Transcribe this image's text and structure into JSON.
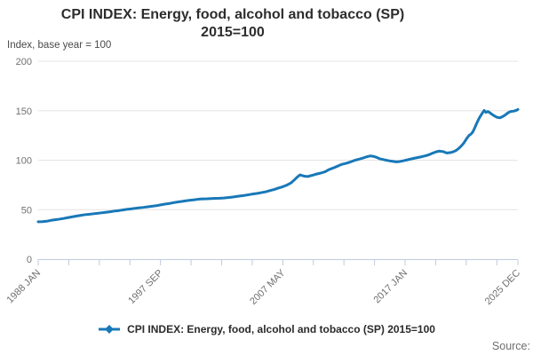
{
  "title": {
    "line1": "CPI INDEX: Energy, food, alcohol and tobacco (SP)",
    "line2": "2015=100"
  },
  "subtitle": "Index, base year = 100",
  "legend": {
    "label": "CPI INDEX: Energy, food, alcohol and tobacco (SP) 2015=100"
  },
  "source_label": "Source:",
  "colors": {
    "line": "#1878b8",
    "grid": "#e4e4e4",
    "axis": "#bfcbdf",
    "tick_text": "#707070",
    "title_text": "#2d2d2d"
  },
  "chart_data": {
    "type": "line",
    "title": "CPI INDEX: Energy, food, alcohol and tobacco (SP) 2015=100",
    "xlabel": "",
    "ylabel": "Index, base year = 100",
    "ylim": [
      0,
      200
    ],
    "y_ticks": [
      0,
      50,
      100,
      150,
      200
    ],
    "grid": true,
    "legend_position": "bottom",
    "x_start_year": 1988.0,
    "x_end_year": 2025.917,
    "total_months": 455,
    "x_ticks": [
      {
        "label": "1988 JAN",
        "m": 0
      },
      {
        "label": "1997 SEP",
        "m": 116
      },
      {
        "label": "2007 MAY",
        "m": 232
      },
      {
        "label": "2017 JAN",
        "m": 348
      },
      {
        "label": "2025 DEC",
        "m": 455
      }
    ],
    "minor_tick_months": [
      0,
      29,
      58,
      87,
      116,
      145,
      174,
      203,
      232,
      261,
      290,
      319,
      348,
      377,
      406,
      435,
      455
    ],
    "series": [
      {
        "name": "CPI INDEX: Energy, food, alcohol and tobacco (SP) 2015=100",
        "points": [
          [
            1988.0,
            37.8
          ],
          [
            1988.33,
            37.9
          ],
          [
            1988.67,
            38.3
          ],
          [
            1989.0,
            39.2
          ],
          [
            1989.33,
            39.8
          ],
          [
            1989.67,
            40.4
          ],
          [
            1990.0,
            41.1
          ],
          [
            1990.33,
            41.9
          ],
          [
            1990.67,
            42.7
          ],
          [
            1991.0,
            43.5
          ],
          [
            1991.33,
            44.2
          ],
          [
            1991.67,
            44.9
          ],
          [
            1992.0,
            45.3
          ],
          [
            1992.33,
            45.8
          ],
          [
            1992.67,
            46.3
          ],
          [
            1993.0,
            46.8
          ],
          [
            1993.33,
            47.3
          ],
          [
            1993.67,
            47.9
          ],
          [
            1994.0,
            48.5
          ],
          [
            1994.33,
            49.0
          ],
          [
            1994.67,
            49.7
          ],
          [
            1995.0,
            50.3
          ],
          [
            1995.33,
            50.8
          ],
          [
            1995.67,
            51.4
          ],
          [
            1996.0,
            51.9
          ],
          [
            1996.33,
            52.3
          ],
          [
            1996.67,
            52.9
          ],
          [
            1997.0,
            53.5
          ],
          [
            1997.33,
            54.0
          ],
          [
            1997.67,
            54.8
          ],
          [
            1998.0,
            55.6
          ],
          [
            1998.33,
            56.2
          ],
          [
            1998.67,
            57.0
          ],
          [
            1999.0,
            57.7
          ],
          [
            1999.33,
            58.3
          ],
          [
            1999.67,
            59.0
          ],
          [
            2000.0,
            59.5
          ],
          [
            2000.33,
            60.0
          ],
          [
            2000.67,
            60.6
          ],
          [
            2001.0,
            60.9
          ],
          [
            2001.33,
            61.0
          ],
          [
            2001.67,
            61.2
          ],
          [
            2002.0,
            61.4
          ],
          [
            2002.33,
            61.5
          ],
          [
            2002.67,
            61.8
          ],
          [
            2003.0,
            62.2
          ],
          [
            2003.33,
            62.7
          ],
          [
            2003.67,
            63.3
          ],
          [
            2004.0,
            63.9
          ],
          [
            2004.33,
            64.5
          ],
          [
            2004.67,
            65.2
          ],
          [
            2005.0,
            65.9
          ],
          [
            2005.33,
            66.5
          ],
          [
            2005.67,
            67.3
          ],
          [
            2006.0,
            68.1
          ],
          [
            2006.33,
            69.3
          ],
          [
            2006.67,
            70.5
          ],
          [
            2007.0,
            71.9
          ],
          [
            2007.33,
            73.2
          ],
          [
            2007.67,
            74.9
          ],
          [
            2008.0,
            77.2
          ],
          [
            2008.25,
            80.1
          ],
          [
            2008.5,
            83.2
          ],
          [
            2008.7,
            85.2
          ],
          [
            2008.9,
            84.3
          ],
          [
            2009.1,
            83.7
          ],
          [
            2009.3,
            83.5
          ],
          [
            2009.5,
            84.2
          ],
          [
            2009.75,
            85.0
          ],
          [
            2010.0,
            86.0
          ],
          [
            2010.33,
            87.0
          ],
          [
            2010.67,
            88.3
          ],
          [
            2011.0,
            90.6
          ],
          [
            2011.33,
            92.2
          ],
          [
            2011.67,
            94.0
          ],
          [
            2012.0,
            95.8
          ],
          [
            2012.33,
            96.8
          ],
          [
            2012.67,
            98.2
          ],
          [
            2013.0,
            99.8
          ],
          [
            2013.33,
            100.9
          ],
          [
            2013.67,
            102.2
          ],
          [
            2014.0,
            103.6
          ],
          [
            2014.25,
            104.3
          ],
          [
            2014.5,
            103.9
          ],
          [
            2014.75,
            102.9
          ],
          [
            2015.0,
            101.4
          ],
          [
            2015.25,
            100.7
          ],
          [
            2015.5,
            100.0
          ],
          [
            2015.75,
            99.4
          ],
          [
            2016.0,
            98.9
          ],
          [
            2016.3,
            98.3
          ],
          [
            2016.6,
            98.7
          ],
          [
            2016.85,
            99.4
          ],
          [
            2017.1,
            100.1
          ],
          [
            2017.4,
            101.0
          ],
          [
            2017.7,
            101.9
          ],
          [
            2018.0,
            102.7
          ],
          [
            2018.3,
            103.5
          ],
          [
            2018.6,
            104.4
          ],
          [
            2018.9,
            105.6
          ],
          [
            2019.15,
            107.0
          ],
          [
            2019.4,
            108.2
          ],
          [
            2019.7,
            109.2
          ],
          [
            2020.0,
            108.7
          ],
          [
            2020.3,
            107.3
          ],
          [
            2020.6,
            107.7
          ],
          [
            2020.85,
            108.7
          ],
          [
            2021.05,
            110.0
          ],
          [
            2021.25,
            112.0
          ],
          [
            2021.45,
            114.5
          ],
          [
            2021.65,
            117.5
          ],
          [
            2021.85,
            121.5
          ],
          [
            2022.05,
            125.0
          ],
          [
            2022.2,
            126.3
          ],
          [
            2022.35,
            128.5
          ],
          [
            2022.5,
            132.5
          ],
          [
            2022.65,
            137.0
          ],
          [
            2022.8,
            141.0
          ],
          [
            2022.95,
            144.5
          ],
          [
            2023.1,
            147.5
          ],
          [
            2023.25,
            150.3
          ],
          [
            2023.4,
            148.3
          ],
          [
            2023.55,
            149.2
          ],
          [
            2023.7,
            148.0
          ],
          [
            2023.85,
            146.5
          ],
          [
            2024.0,
            145.2
          ],
          [
            2024.15,
            144.1
          ],
          [
            2024.3,
            143.2
          ],
          [
            2024.5,
            142.8
          ],
          [
            2024.65,
            143.7
          ],
          [
            2024.8,
            144.8
          ],
          [
            2024.95,
            146.0
          ],
          [
            2025.1,
            147.6
          ],
          [
            2025.25,
            148.8
          ],
          [
            2025.4,
            149.3
          ],
          [
            2025.55,
            149.5
          ],
          [
            2025.7,
            150.0
          ],
          [
            2025.85,
            150.7
          ],
          [
            2025.92,
            151.3
          ]
        ]
      }
    ]
  }
}
